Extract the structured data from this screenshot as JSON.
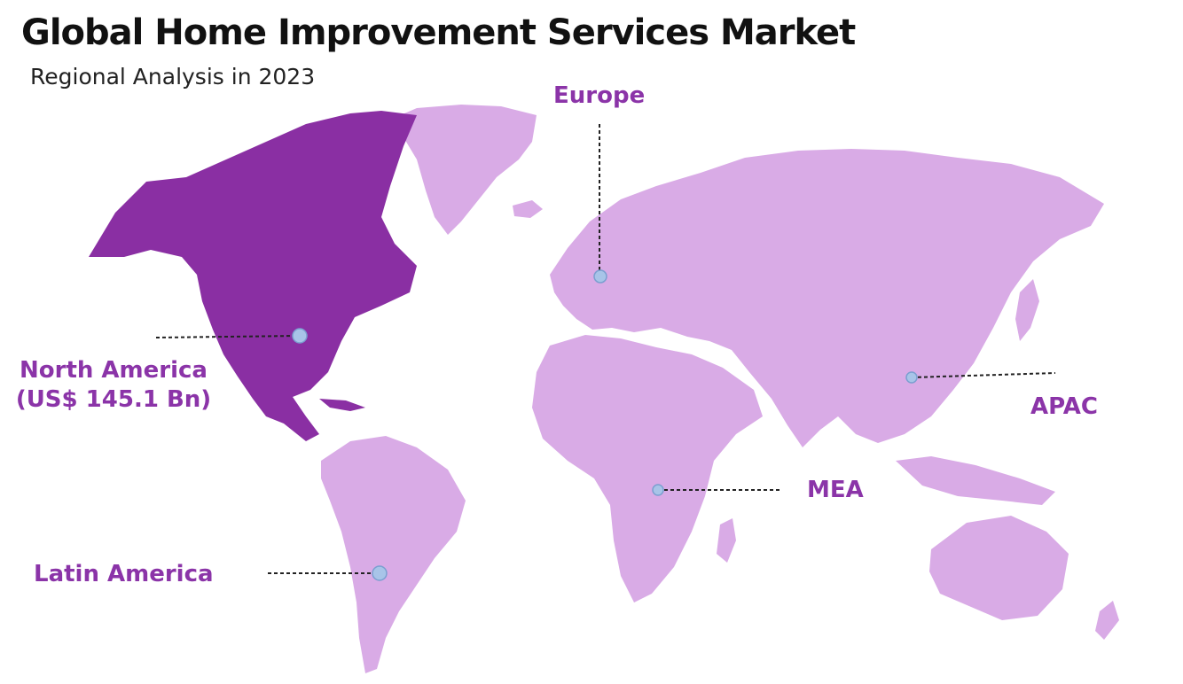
{
  "header": {
    "title": "Global Home Improvement Services Market",
    "subtitle": "Regional Analysis in 2023"
  },
  "colors": {
    "highlight_region": "#8a2fa3",
    "other_regions": "#d9abe6",
    "label_text": "#8b34a8",
    "marker_fill": "#a8c4e8",
    "marker_stroke": "#7b9fd0",
    "leader_line": "#222222"
  },
  "regions": {
    "north_america": {
      "label": "North America",
      "value": "(US$ 145.1 Bn)",
      "highlighted": true
    },
    "europe": {
      "label": "Europe",
      "highlighted": false
    },
    "apac": {
      "label": "APAC",
      "highlighted": false
    },
    "mea": {
      "label": "MEA",
      "highlighted": false
    },
    "latin_america": {
      "label": "Latin America",
      "highlighted": false
    }
  }
}
